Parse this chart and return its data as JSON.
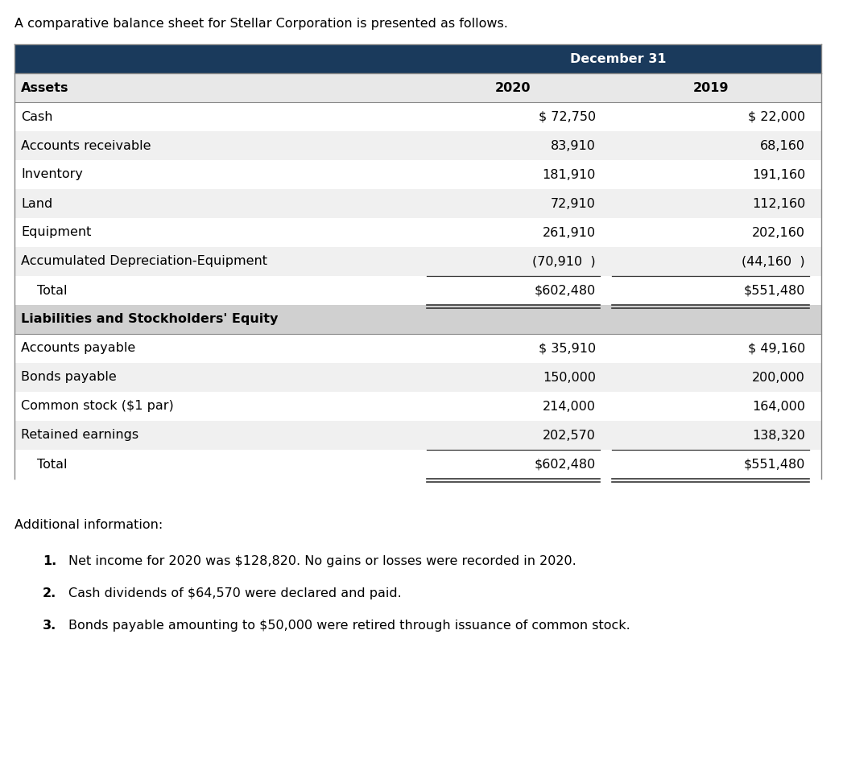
{
  "intro_text": "A comparative balance sheet for Stellar Corporation is presented as follows.",
  "header_label": "December 31",
  "col_headers": [
    "Assets",
    "2020",
    "2019"
  ],
  "header_bg": "#1a3a5c",
  "header_text_color": "#ffffff",
  "assets_subheader_bg": "#e8e8e8",
  "liab_subheader_bg": "#d0d0d0",
  "assets_rows": [
    [
      "Cash",
      "$ 72,750",
      "$ 22,000"
    ],
    [
      "Accounts receivable",
      "83,910",
      "68,160"
    ],
    [
      "Inventory",
      "181,910",
      "191,160"
    ],
    [
      "Land",
      "72,910",
      "112,160"
    ],
    [
      "Equipment",
      "261,910",
      "202,160"
    ],
    [
      "Accumulated Depreciation-Equipment",
      "(70,910  )",
      "(44,160  )"
    ],
    [
      "  Total",
      "$602,480",
      "$551,480"
    ]
  ],
  "liabilities_header": "Liabilities and Stockholders' Equity",
  "liabilities_rows": [
    [
      "Accounts payable",
      "$ 35,910",
      "$ 49,160"
    ],
    [
      "Bonds payable",
      "150,000",
      "200,000"
    ],
    [
      "Common stock ($1 par)",
      "214,000",
      "164,000"
    ],
    [
      "Retained earnings",
      "202,570",
      "138,320"
    ],
    [
      "  Total",
      "$602,480",
      "$551,480"
    ]
  ],
  "additional_info_title": "Additional information:",
  "additional_info": [
    "Net income for 2020 was $128,820. No gains or losses were recorded in 2020.",
    "Cash dividends of $64,570 were declared and paid.",
    "Bonds payable amounting to $50,000 were retired through issuance of common stock."
  ],
  "bg_color": "#ffffff",
  "row_colors": [
    "#ffffff",
    "#f0f0f0"
  ],
  "line_color": "#555555",
  "font_size": 11.5,
  "font_family": "DejaVu Sans"
}
